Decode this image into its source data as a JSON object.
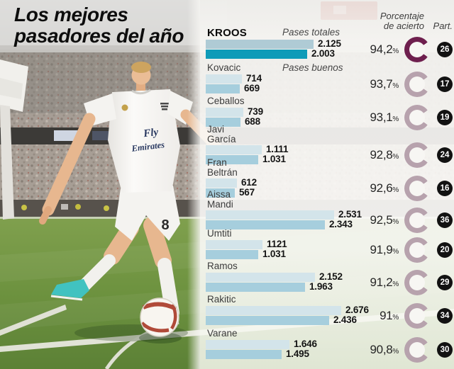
{
  "title": {
    "line1": "Los mejores",
    "line2": "pasadores del año"
  },
  "headers": {
    "porcentaje_line1": "Porcentaje",
    "porcentaje_line2": "de acierto",
    "part": "Part."
  },
  "photo": {
    "jersey_sponsor_line1": "Fly",
    "jersey_sponsor_line2": "Emirates",
    "shorts_number": "8"
  },
  "colors": {
    "bar_totales": "#d3e4ea",
    "bar_buenos": "#a6cedd",
    "bar_totales_highlight": "#afcbd5",
    "bar_buenos_highlight": "#0f9bb8",
    "donut": "#b7a2ad",
    "donut_highlight": "#6e1f4e",
    "badge_bg": "#121212",
    "badge_text": "#ffffff"
  },
  "chart_data": {
    "type": "bar",
    "orientation": "horizontal",
    "series_labels": [
      "Pases totales",
      "Pases buenos"
    ],
    "pct_suffix": "%",
    "value_axis_max_hint": 2700,
    "players": [
      {
        "name_lines": [
          "KROOS"
        ],
        "totales": 2125,
        "buenos": 2003,
        "totales_label": "2.125",
        "buenos_label": "2.003",
        "pct": "94,2",
        "pct_value": 94.2,
        "part": "26",
        "highlight": true
      },
      {
        "name_lines": [
          "Kovacic"
        ],
        "totales": 714,
        "buenos": 669,
        "totales_label": "714",
        "buenos_label": "669",
        "pct": "93,7",
        "pct_value": 93.7,
        "part": "17",
        "highlight": false
      },
      {
        "name_lines": [
          "Ceballos"
        ],
        "totales": 739,
        "buenos": 688,
        "totales_label": "739",
        "buenos_label": "688",
        "pct": "93,1",
        "pct_value": 93.1,
        "part": "19",
        "highlight": false
      },
      {
        "name_lines": [
          "Javi",
          "García"
        ],
        "totales": 1111,
        "buenos": 1031,
        "totales_label": "1.111",
        "buenos_label": "1.031",
        "pct": "92,8",
        "pct_value": 92.8,
        "part": "24",
        "highlight": false
      },
      {
        "name_lines": [
          "Fran",
          "Beltrán"
        ],
        "totales": 612,
        "buenos": 567,
        "totales_label": "612",
        "buenos_label": "567",
        "pct": "92,6",
        "pct_value": 92.6,
        "part": "16",
        "highlight": false
      },
      {
        "name_lines": [
          "Aissa",
          "Mandi"
        ],
        "totales": 2531,
        "buenos": 2343,
        "totales_label": "2.531",
        "buenos_label": "2.343",
        "pct": "92,5",
        "pct_value": 92.5,
        "part": "36",
        "highlight": false
      },
      {
        "name_lines": [
          "Umtiti"
        ],
        "totales": 1121,
        "buenos": 1031,
        "totales_label": "1121",
        "buenos_label": "1.031",
        "pct": "91,9",
        "pct_value": 91.9,
        "part": "20",
        "highlight": false
      },
      {
        "name_lines": [
          "Ramos"
        ],
        "totales": 2152,
        "buenos": 1963,
        "totales_label": "2.152",
        "buenos_label": "1.963",
        "pct": "91,2",
        "pct_value": 91.2,
        "part": "29",
        "highlight": false
      },
      {
        "name_lines": [
          "Rakitic"
        ],
        "totales": 2676,
        "buenos": 2436,
        "totales_label": "2.676",
        "buenos_label": "2.436",
        "pct": "91",
        "pct_value": 91.0,
        "part": "34",
        "highlight": false
      },
      {
        "name_lines": [
          "Varane"
        ],
        "totales": 1646,
        "buenos": 1495,
        "totales_label": "1.646",
        "buenos_label": "1.495",
        "pct": "90,8",
        "pct_value": 90.8,
        "part": "30",
        "highlight": false
      }
    ]
  }
}
